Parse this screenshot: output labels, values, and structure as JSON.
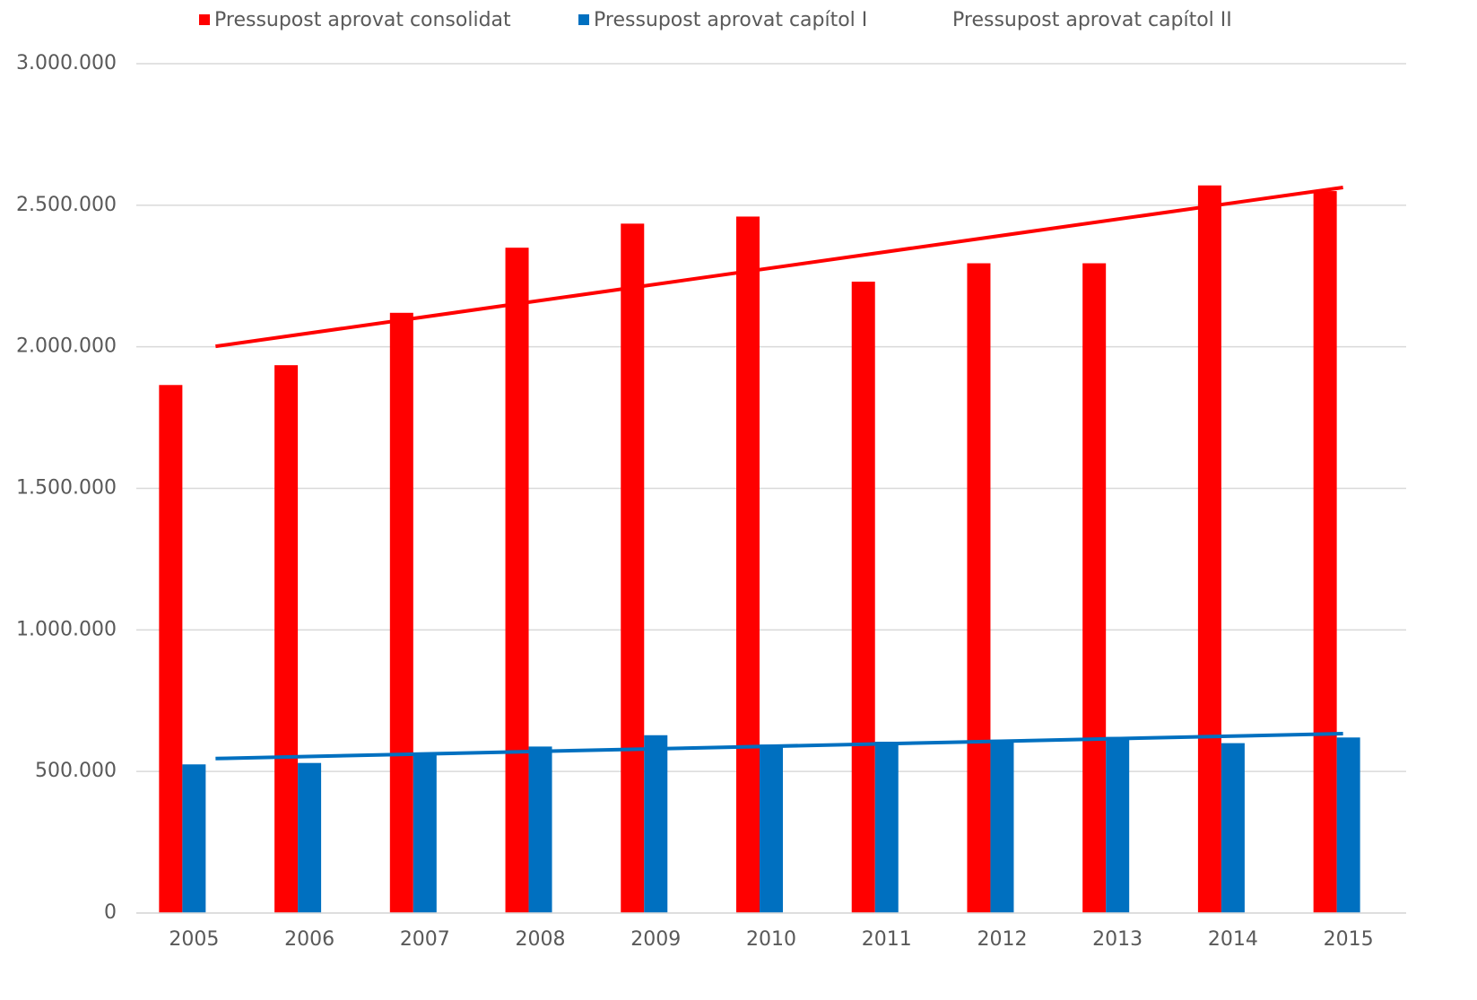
{
  "chart_data": {
    "type": "bar",
    "categories": [
      "2005",
      "2006",
      "2007",
      "2008",
      "2009",
      "2010",
      "2011",
      "2012",
      "2013",
      "2014",
      "2015"
    ],
    "series": [
      {
        "name": "Pressupost aprovat consolidat",
        "color": "#ff0000",
        "values": [
          1865000,
          1935000,
          2120000,
          2350000,
          2435000,
          2460000,
          2230000,
          2295000,
          2295000,
          2570000,
          2550000
        ]
      },
      {
        "name": "Pressupost aprovat capítol I",
        "color": "#0070c0",
        "values": [
          525000,
          530000,
          560000,
          588000,
          628000,
          595000,
          605000,
          612000,
          622000,
          600000,
          620000
        ]
      },
      {
        "name": "Pressupost aprovat capítol II",
        "color": "#ffffff",
        "values": [
          null,
          null,
          null,
          null,
          null,
          null,
          null,
          null,
          null,
          null,
          null
        ]
      }
    ],
    "trendline": "linear",
    "ylim": [
      0,
      3000000
    ],
    "yticks": [
      0,
      {
        "value": 500000,
        "label": "500.000"
      },
      {
        "value": 1000000,
        "label": "1.000.000"
      },
      {
        "value": 1500000,
        "label": "1.500.000"
      },
      {
        "value": 2000000,
        "label": "2.000.000"
      },
      {
        "value": 2500000,
        "label": "2.500.000"
      },
      {
        "value": 3000000,
        "label": "3.000.000"
      }
    ],
    "grid": true,
    "legend": "top"
  }
}
